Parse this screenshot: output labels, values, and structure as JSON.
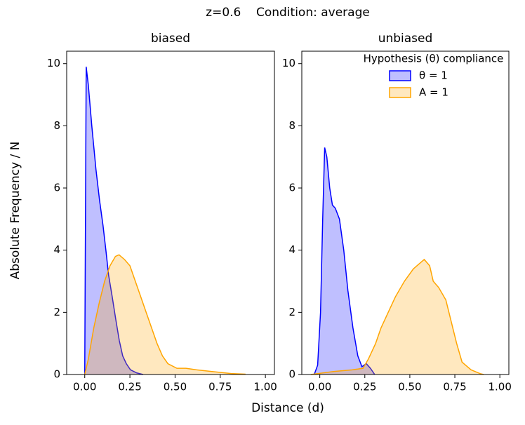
{
  "title": "z=0.6    Condition: average",
  "x_label": "Distance (d)",
  "y_label": "Absolute Frequency / N",
  "chart_data": [
    {
      "type": "area",
      "title": "biased",
      "xlim": [
        -0.1,
        1.05
      ],
      "ylim": [
        0,
        10.4
      ],
      "xticks": [
        {
          "value": 0,
          "label": "0.00"
        },
        {
          "value": 0.25,
          "label": "0.25"
        },
        {
          "value": 0.5,
          "label": "0.50"
        },
        {
          "value": 0.75,
          "label": "0.75"
        },
        {
          "value": 1,
          "label": "1.00"
        }
      ],
      "yticks": [
        0,
        2,
        4,
        6,
        8,
        10
      ],
      "series": [
        {
          "name": "θ = 1",
          "color": "#0000ff",
          "x": [
            0.0,
            0.008,
            0.02,
            0.039,
            0.062,
            0.082,
            0.101,
            0.117,
            0.132,
            0.152,
            0.171,
            0.191,
            0.21,
            0.23,
            0.253,
            0.288,
            0.323
          ],
          "values": [
            0,
            9.9,
            9.3,
            8.0,
            6.6,
            5.6,
            4.8,
            4.0,
            3.2,
            2.5,
            1.8,
            1.1,
            0.6,
            0.35,
            0.15,
            0.05,
            0
          ]
        },
        {
          "name": "A = 1",
          "color": "#ffa500",
          "x": [
            0.0,
            0.02,
            0.05,
            0.08,
            0.11,
            0.14,
            0.17,
            0.19,
            0.22,
            0.25,
            0.28,
            0.31,
            0.34,
            0.37,
            0.4,
            0.43,
            0.46,
            0.51,
            0.56,
            0.62,
            0.7,
            0.81,
            0.89
          ],
          "values": [
            0,
            0.5,
            1.5,
            2.3,
            3.0,
            3.5,
            3.8,
            3.85,
            3.7,
            3.5,
            3.0,
            2.5,
            2.0,
            1.5,
            1.0,
            0.6,
            0.35,
            0.2,
            0.2,
            0.15,
            0.1,
            0.03,
            0.01
          ]
        }
      ]
    },
    {
      "type": "area",
      "title": "unbiased",
      "legend_title": "Hypothesis (θ) compliance",
      "legend": "upper right",
      "xlim": [
        -0.1,
        1.05
      ],
      "ylim": [
        0,
        10.4
      ],
      "xticks": [
        {
          "value": 0,
          "label": "0.00"
        },
        {
          "value": 0.25,
          "label": "0.25"
        },
        {
          "value": 0.5,
          "label": "0.50"
        },
        {
          "value": 0.75,
          "label": "0.75"
        },
        {
          "value": 1,
          "label": "1.00"
        }
      ],
      "yticks": [
        0,
        2,
        4,
        6,
        8,
        10
      ],
      "series": [
        {
          "name": "θ = 1",
          "color": "#0000ff",
          "x": [
            -0.031,
            -0.012,
            0.004,
            0.016,
            0.027,
            0.039,
            0.055,
            0.07,
            0.086,
            0.109,
            0.133,
            0.156,
            0.184,
            0.211,
            0.234,
            0.258,
            0.281,
            0.305
          ],
          "values": [
            0,
            0.3,
            2.0,
            5.0,
            7.3,
            7.0,
            6.0,
            5.45,
            5.35,
            5.0,
            4.0,
            2.7,
            1.5,
            0.6,
            0.25,
            0.35,
            0.2,
            0
          ]
        },
        {
          "name": "A = 1",
          "color": "#ffa500",
          "x": [
            -0.05,
            0.08,
            0.18,
            0.24,
            0.27,
            0.31,
            0.34,
            0.38,
            0.42,
            0.47,
            0.52,
            0.58,
            0.61,
            0.63,
            0.66,
            0.7,
            0.73,
            0.76,
            0.79,
            0.84,
            0.89,
            0.91
          ],
          "values": [
            0,
            0.1,
            0.15,
            0.2,
            0.5,
            1.0,
            1.5,
            2.0,
            2.5,
            3.0,
            3.4,
            3.7,
            3.5,
            3.0,
            2.8,
            2.4,
            1.7,
            1.0,
            0.4,
            0.15,
            0.03,
            0
          ]
        }
      ]
    }
  ]
}
